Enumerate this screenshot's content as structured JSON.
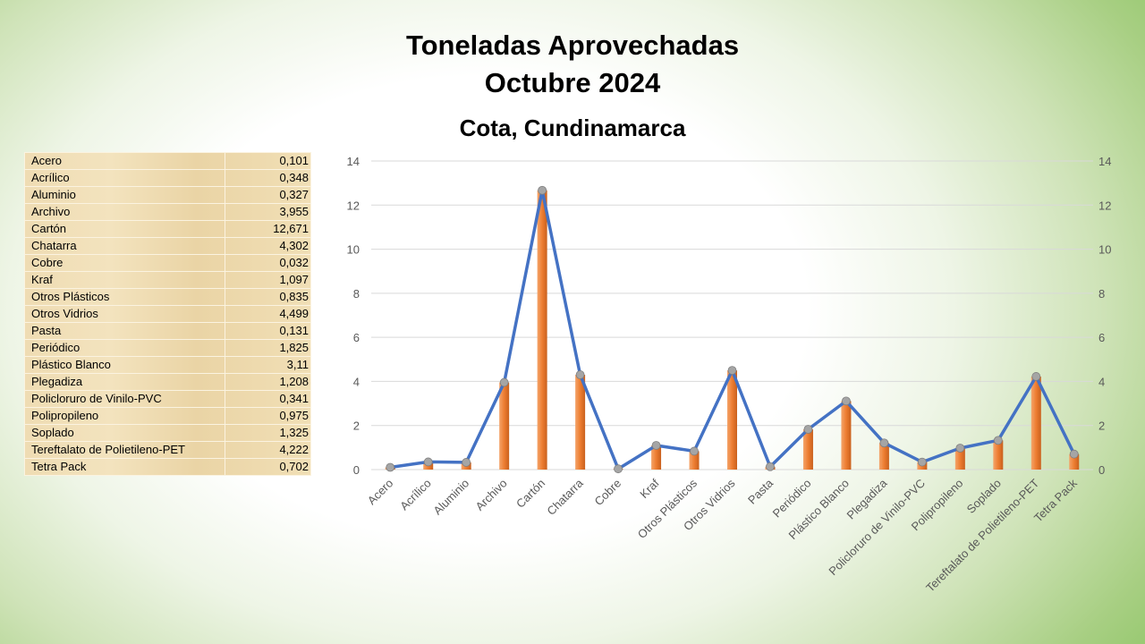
{
  "page": {
    "title_line1": "Toneladas Aprovechadas",
    "title_line2": "Octubre 2024",
    "subtitle": "Cota, Cundinamarca"
  },
  "colors": {
    "bar": "#ed7d31",
    "line": "#4472c4",
    "marker": "#a5a5a5",
    "grid": "#d9d9d9",
    "table_bg": "#efdcb3"
  },
  "table": {
    "rows": [
      {
        "name": "Acero",
        "value": "0,101"
      },
      {
        "name": "Acrílico",
        "value": "0,348"
      },
      {
        "name": "Aluminio",
        "value": "0,327"
      },
      {
        "name": "Archivo",
        "value": "3,955"
      },
      {
        "name": "Cartón",
        "value": "12,671"
      },
      {
        "name": "Chatarra",
        "value": "4,302"
      },
      {
        "name": "Cobre",
        "value": "0,032"
      },
      {
        "name": "Kraf",
        "value": "1,097"
      },
      {
        "name": "Otros Plásticos",
        "value": "0,835"
      },
      {
        "name": "Otros Vidrios",
        "value": "4,499"
      },
      {
        "name": "Pasta",
        "value": "0,131"
      },
      {
        "name": "Periódico",
        "value": "1,825"
      },
      {
        "name": "Plástico Blanco",
        "value": "3,11"
      },
      {
        "name": "Plegadiza",
        "value": "1,208"
      },
      {
        "name": "Policloruro de Vinilo-PVC",
        "value": "0,341"
      },
      {
        "name": "Polipropileno",
        "value": "0,975"
      },
      {
        "name": "Soplado",
        "value": "1,325"
      },
      {
        "name": "Tereftalato de Polietileno-PET",
        "value": "4,222"
      },
      {
        "name": "Tetra Pack",
        "value": "0,702"
      }
    ]
  },
  "chart_data": {
    "type": "bar",
    "combo": "bar+line",
    "title": "",
    "xlabel": "",
    "ylabel": "",
    "categories": [
      "Acero",
      "Acrílico",
      "Aluminio",
      "Archivo",
      "Cartón",
      "Chatarra",
      "Cobre",
      "Kraf",
      "Otros Plásticos",
      "Otros Vidrios",
      "Pasta",
      "Periódico",
      "Plástico Blanco",
      "Plegadiza",
      "Policloruro de Vinilo-PVC",
      "Polipropileno",
      "Soplado",
      "Tereftalato de Polietileno-PET",
      "Tetra Pack"
    ],
    "series": [
      {
        "chart": "bar",
        "axis": "left",
        "values": [
          0.101,
          0.348,
          0.327,
          3.955,
          12.671,
          4.302,
          0.032,
          1.097,
          0.835,
          4.499,
          0.131,
          1.825,
          3.11,
          1.208,
          0.341,
          0.975,
          1.325,
          4.222,
          0.702
        ]
      },
      {
        "chart": "line",
        "axis": "right",
        "values": [
          0.101,
          0.348,
          0.327,
          3.955,
          12.671,
          4.302,
          0.032,
          1.097,
          0.835,
          4.499,
          0.131,
          1.825,
          3.11,
          1.208,
          0.341,
          0.975,
          1.325,
          4.222,
          0.702
        ]
      }
    ],
    "ylim": [
      0,
      14
    ],
    "y2lim": [
      0,
      14
    ],
    "yticks": [
      "0",
      "2",
      "4",
      "6",
      "8",
      "10",
      "12",
      "14"
    ],
    "grid": true,
    "legend": "none"
  }
}
